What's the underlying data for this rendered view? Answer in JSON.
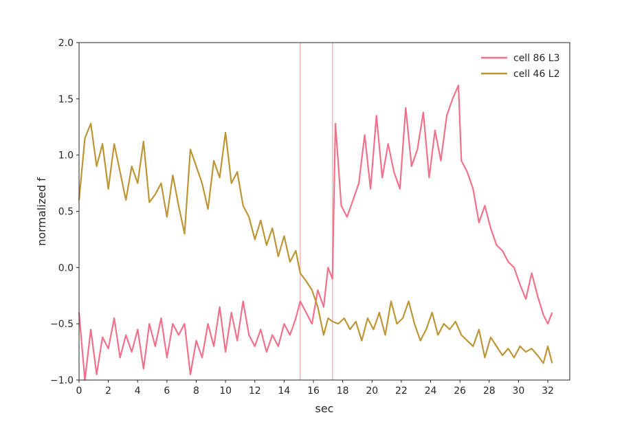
{
  "chart_data": {
    "type": "line",
    "xlabel": "sec",
    "ylabel": "normalized f",
    "xlim": [
      0,
      33.5
    ],
    "ylim": [
      -1.0,
      2.0
    ],
    "xticks": [
      0,
      2,
      4,
      6,
      8,
      10,
      12,
      14,
      16,
      18,
      20,
      22,
      24,
      26,
      28,
      30,
      32
    ],
    "yticks": [
      {
        "value": -1.0,
        "label": "−1.0"
      },
      {
        "value": -0.5,
        "label": "−0.5"
      },
      {
        "value": 0.0,
        "label": "0.0"
      },
      {
        "value": 0.5,
        "label": "0.5"
      },
      {
        "value": 1.0,
        "label": "1.0"
      },
      {
        "value": 1.5,
        "label": "1.5"
      },
      {
        "value": 2.0,
        "label": "2.0"
      }
    ],
    "grid": false,
    "legend_position": "top-right",
    "vlines": [
      {
        "x": 15.1,
        "color": "#f4b6b6"
      },
      {
        "x": 17.3,
        "color": "#f4b6b6"
      }
    ],
    "series": [
      {
        "name": "cell 86 L3",
        "color": "#f2718a",
        "x": [
          0,
          0.4,
          0.8,
          1.2,
          1.6,
          2.0,
          2.4,
          2.8,
          3.2,
          3.6,
          4.0,
          4.4,
          4.8,
          5.2,
          5.6,
          6.0,
          6.4,
          6.8,
          7.2,
          7.6,
          8.0,
          8.4,
          8.8,
          9.2,
          9.6,
          10.0,
          10.4,
          10.8,
          11.2,
          11.6,
          12.0,
          12.4,
          12.8,
          13.2,
          13.6,
          14.0,
          14.4,
          14.8,
          15.1,
          15.5,
          15.9,
          16.3,
          16.7,
          17.0,
          17.3,
          17.5,
          17.9,
          18.3,
          18.7,
          19.1,
          19.5,
          19.9,
          20.3,
          20.7,
          21.1,
          21.5,
          21.9,
          22.3,
          22.7,
          23.1,
          23.5,
          23.9,
          24.3,
          24.7,
          25.1,
          25.5,
          25.9,
          26.1,
          26.5,
          26.9,
          27.3,
          27.7,
          28.1,
          28.5,
          28.9,
          29.3,
          29.7,
          30.1,
          30.5,
          30.9,
          31.3,
          31.7,
          32.0,
          32.3
        ],
        "values": [
          -0.4,
          -1.0,
          -0.55,
          -0.95,
          -0.62,
          -0.72,
          -0.45,
          -0.8,
          -0.6,
          -0.75,
          -0.55,
          -0.9,
          -0.5,
          -0.7,
          -0.45,
          -0.8,
          -0.5,
          -0.6,
          -0.5,
          -0.95,
          -0.65,
          -0.8,
          -0.5,
          -0.7,
          -0.35,
          -0.75,
          -0.4,
          -0.65,
          -0.3,
          -0.6,
          -0.7,
          -0.55,
          -0.75,
          -0.6,
          -0.7,
          -0.5,
          -0.6,
          -0.45,
          -0.3,
          -0.4,
          -0.5,
          -0.2,
          -0.35,
          0.0,
          -0.1,
          1.28,
          0.55,
          0.45,
          0.6,
          0.75,
          1.18,
          0.7,
          1.35,
          0.8,
          1.1,
          0.85,
          0.7,
          1.42,
          0.9,
          1.05,
          1.38,
          0.8,
          1.22,
          0.95,
          1.35,
          1.5,
          1.62,
          0.95,
          0.85,
          0.7,
          0.4,
          0.55,
          0.35,
          0.2,
          0.15,
          0.05,
          0.0,
          -0.15,
          -0.28,
          -0.05,
          -0.25,
          -0.42,
          -0.5,
          -0.4
        ]
      },
      {
        "name": "cell 46 L2",
        "color": "#bd9534",
        "x": [
          0,
          0.4,
          0.8,
          1.2,
          1.6,
          2.0,
          2.4,
          2.8,
          3.2,
          3.6,
          4.0,
          4.4,
          4.8,
          5.2,
          5.6,
          6.0,
          6.4,
          6.8,
          7.2,
          7.6,
          8.0,
          8.4,
          8.8,
          9.2,
          9.6,
          10.0,
          10.4,
          10.8,
          11.2,
          11.6,
          12.0,
          12.4,
          12.8,
          13.2,
          13.6,
          14.0,
          14.4,
          14.8,
          15.1,
          15.5,
          15.9,
          16.3,
          16.7,
          17.0,
          17.3,
          17.7,
          18.1,
          18.5,
          18.9,
          19.3,
          19.7,
          20.1,
          20.5,
          20.9,
          21.3,
          21.7,
          22.1,
          22.5,
          22.9,
          23.3,
          23.7,
          24.1,
          24.5,
          24.9,
          25.3,
          25.7,
          26.1,
          26.5,
          26.9,
          27.3,
          27.7,
          28.1,
          28.5,
          28.9,
          29.3,
          29.7,
          30.1,
          30.5,
          30.9,
          31.3,
          31.7,
          32.0,
          32.3
        ],
        "values": [
          0.6,
          1.15,
          1.28,
          0.9,
          1.1,
          0.7,
          1.1,
          0.85,
          0.6,
          0.9,
          0.75,
          1.12,
          0.58,
          0.65,
          0.75,
          0.45,
          0.82,
          0.55,
          0.3,
          1.05,
          0.9,
          0.75,
          0.52,
          0.95,
          0.8,
          1.2,
          0.75,
          0.85,
          0.55,
          0.45,
          0.25,
          0.42,
          0.2,
          0.35,
          0.1,
          0.28,
          0.05,
          0.15,
          -0.05,
          -0.12,
          -0.2,
          -0.35,
          -0.6,
          -0.45,
          -0.48,
          -0.5,
          -0.45,
          -0.55,
          -0.48,
          -0.65,
          -0.45,
          -0.55,
          -0.4,
          -0.6,
          -0.3,
          -0.5,
          -0.45,
          -0.3,
          -0.5,
          -0.65,
          -0.55,
          -0.4,
          -0.6,
          -0.5,
          -0.55,
          -0.48,
          -0.6,
          -0.65,
          -0.7,
          -0.55,
          -0.8,
          -0.62,
          -0.7,
          -0.78,
          -0.72,
          -0.8,
          -0.7,
          -0.75,
          -0.72,
          -0.78,
          -0.85,
          -0.7,
          -0.85
        ]
      }
    ]
  }
}
